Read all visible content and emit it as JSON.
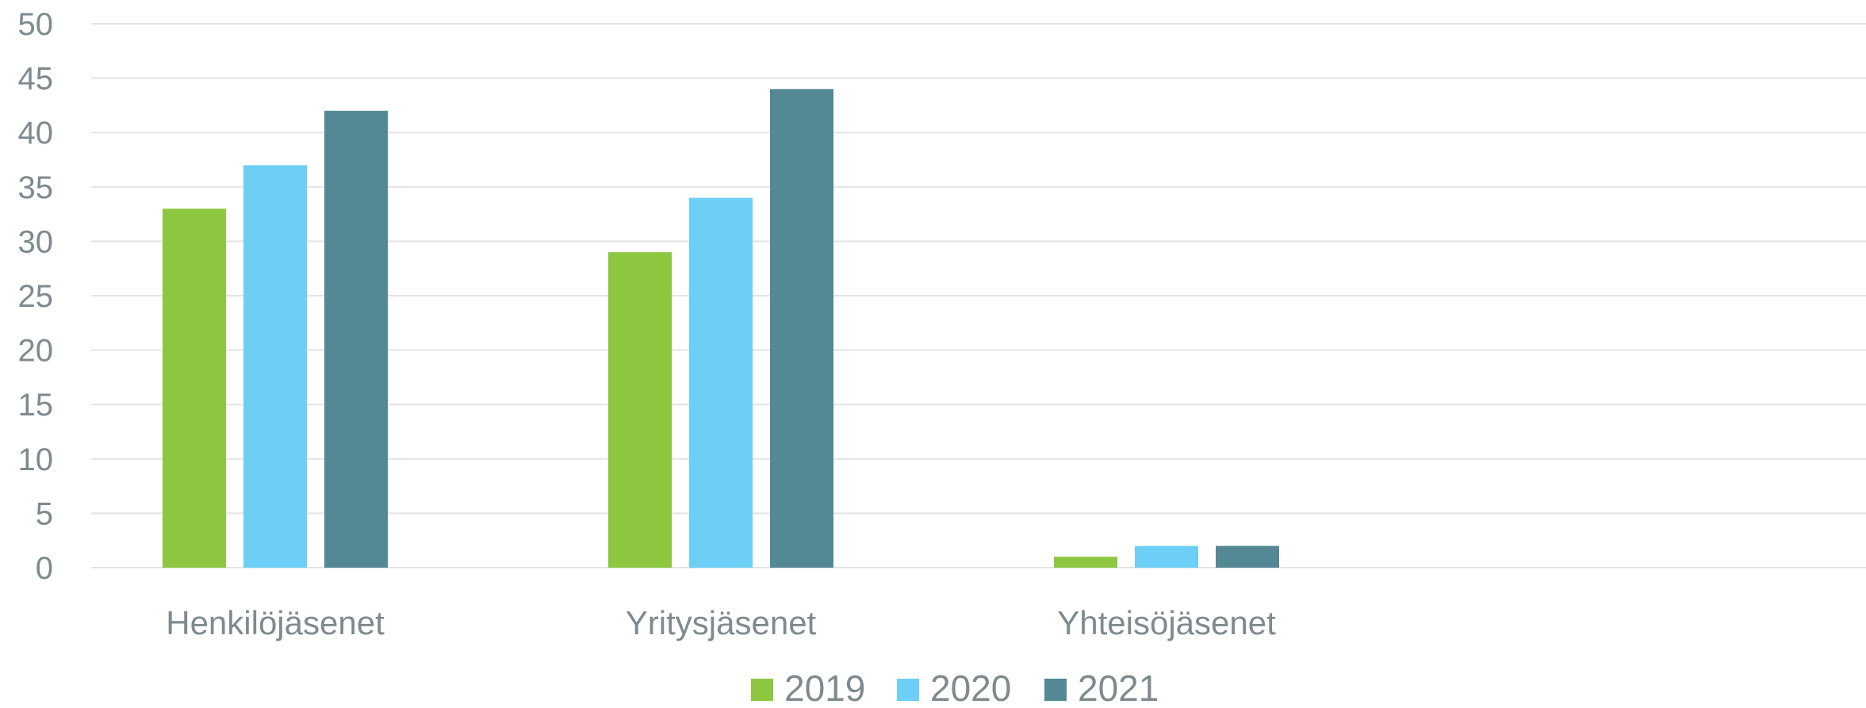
{
  "chart_data": {
    "type": "bar",
    "categories": [
      "Henkilöjäsenet",
      "Yritysjäsenet",
      "Yhteisöjäsenet"
    ],
    "series": [
      {
        "name": "2019",
        "values": [
          33,
          29,
          1
        ],
        "color": "#8dc63f"
      },
      {
        "name": "2020",
        "values": [
          37,
          34,
          2
        ],
        "color": "#6dcff6"
      },
      {
        "name": "2021",
        "values": [
          42,
          44,
          2
        ],
        "color": "#548895"
      }
    ],
    "ylim": [
      0,
      50
    ],
    "yticks": [
      "0",
      "5",
      "10",
      "15",
      "20",
      "25",
      "30",
      "35",
      "40",
      "45",
      "50"
    ],
    "grid": true,
    "legend_position": "bottom",
    "colors": {
      "grid": "#e3e3e3",
      "text": "#7f8a8f"
    }
  }
}
